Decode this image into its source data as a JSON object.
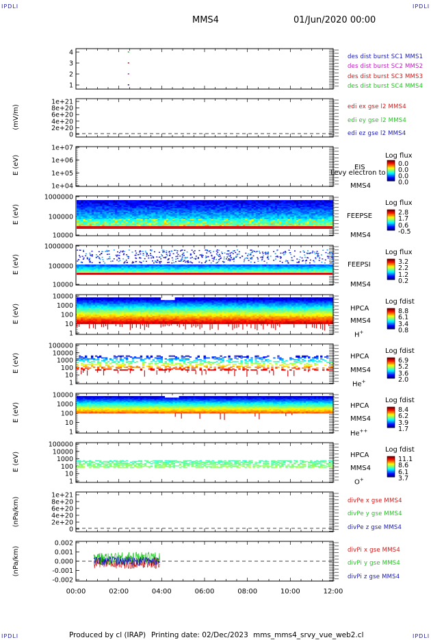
{
  "corner_label": "IPDLI",
  "header": {
    "spacecraft": "MMS4",
    "datetime": "01/Jun/2020 00:00"
  },
  "footer": {
    "producer": "Produced by cl (IRAP)",
    "printing": "Printing date: 02/Dec/2023",
    "file": "mms_mms4_srvy_vue_web2.cl"
  },
  "x_ticks": [
    "00:00",
    "02:00",
    "04:00",
    "06:00",
    "08:00",
    "10:00",
    "12:00"
  ],
  "panels": {
    "p1": {
      "ticks": [
        "4",
        "3",
        "2",
        "1"
      ],
      "legend": [
        {
          "text": "des dist burst SC1 MMS1",
          "color": "#1515b8"
        },
        {
          "text": "des dist burst SC2 MMS2",
          "color": "#c21ac2"
        },
        {
          "text": "des dist burst SC3 MMS3",
          "color": "#d11515"
        },
        {
          "text": "des dist burst SC4 MMS4",
          "color": "#1cc21c"
        }
      ]
    },
    "p2": {
      "ylabel": "(mV/m)",
      "ticks": [
        "1e+21",
        "8e+20",
        "6e+20",
        "4e+20",
        "2e+20",
        "0"
      ],
      "legend": [
        {
          "text": "edi ex gse l2 MMS4",
          "color": "#d11515"
        },
        {
          "text": "edi ey gse l2 MMS4",
          "color": "#1cc21c"
        },
        {
          "text": "edi ez gse l2 MMS4",
          "color": "#1515b8"
        }
      ]
    },
    "p3": {
      "ylabel": "E (eV)",
      "ticks": [
        "1e+07",
        "1e+06",
        "1e+05",
        "1e+04"
      ],
      "inst": "EIS",
      "overlay": "Levy electron to",
      "sc": "MMS4",
      "cb_title": "Log flux",
      "cb_ticks": [
        "0.0",
        "0.0",
        "0.0",
        "0.0"
      ]
    },
    "p4": {
      "ylabel": "E (eV)",
      "ticks": [
        "1000000",
        "100000",
        "10000"
      ],
      "inst": "FEEPSE",
      "sc": "MMS4",
      "cb_title": "Log flux",
      "cb_ticks": [
        "2.8",
        "1.7",
        "0.6",
        "-0.5"
      ]
    },
    "p5": {
      "ylabel": "E (eV)",
      "ticks": [
        "1000000",
        "100000",
        "10000"
      ],
      "inst": "FEEPSI",
      "sc": "MMS4",
      "cb_title": "Log flux",
      "cb_ticks": [
        "3.2",
        "2.2",
        "1.2",
        "0.2"
      ]
    },
    "p6": {
      "ylabel": "E (eV)",
      "ticks": [
        "10000",
        "1000",
        "100",
        "10",
        "1"
      ],
      "inst": "HPCA",
      "sc": "MMS4",
      "species": "H",
      "charge": "+",
      "cb_title": "Log fdist",
      "cb_ticks": [
        "8.8",
        "6.1",
        "3.4",
        "0.8"
      ]
    },
    "p7": {
      "ylabel": "E (eV)",
      "ticks": [
        "100000",
        "10000",
        "1000",
        "100",
        "10",
        "1"
      ],
      "inst": "HPCA",
      "sc": "MMS4",
      "species": "He",
      "charge": "+",
      "cb_title": "Log fdist",
      "cb_ticks": [
        "6.9",
        "5.2",
        "3.6",
        "2.0"
      ]
    },
    "p8": {
      "ylabel": "E (eV)",
      "ticks": [
        "10000",
        "1000",
        "100",
        "10",
        "1"
      ],
      "inst": "HPCA",
      "sc": "MMS4",
      "species": "He",
      "charge": "++",
      "cb_title": "Log fdist",
      "cb_ticks": [
        "8.4",
        "6.2",
        "3.9",
        "1.7"
      ]
    },
    "p9": {
      "ylabel": "E (eV)",
      "ticks": [
        "100000",
        "10000",
        "1000",
        "100",
        "10",
        "1"
      ],
      "inst": "HPCA",
      "sc": "MMS4",
      "species": "O",
      "charge": "+",
      "cb_title": "Log fdist",
      "cb_ticks": [
        "11.1",
        "8.6",
        "6.1",
        "3.7"
      ]
    },
    "p10": {
      "ylabel": "(nPa/km)",
      "ticks": [
        "1e+21",
        "8e+20",
        "6e+20",
        "4e+20",
        "2e+20",
        "0"
      ],
      "legend": [
        {
          "text": "divPe x gse MMS4",
          "color": "#d11515"
        },
        {
          "text": "divPe y gse MMS4",
          "color": "#1cc21c"
        },
        {
          "text": "divPe z gse MMS4",
          "color": "#1515b8"
        }
      ]
    },
    "p11": {
      "ylabel": "(nPa/km)",
      "ticks": [
        "0.002",
        "0.001",
        "0.000",
        "-0.001",
        "-0.002"
      ],
      "legend": [
        {
          "text": "divPi x gse MMS4",
          "color": "#d11515"
        },
        {
          "text": "divPi y gse MMS4",
          "color": "#1cc21c"
        },
        {
          "text": "divPi z gse MMS4",
          "color": "#1515b8"
        }
      ]
    }
  },
  "chart_data": {
    "type": "heatmap",
    "xlabel": "",
    "x_range": [
      "00:00",
      "12:00"
    ],
    "panels": [
      {
        "id": "burst",
        "type": "scatter",
        "y_ticks": [
          4,
          3,
          2,
          1
        ],
        "series": [
          {
            "name": "des dist burst SC1 MMS1",
            "x": [
              "02:25"
            ],
            "y": [
              1
            ]
          },
          {
            "name": "des dist burst SC2 MMS2",
            "x": [
              "02:25"
            ],
            "y": [
              2
            ]
          },
          {
            "name": "des dist burst SC3 MMS3",
            "x": [
              "02:25"
            ],
            "y": [
              3
            ]
          },
          {
            "name": "des dist burst SC4 MMS4",
            "x": [
              "02:25"
            ],
            "y": [
              4
            ]
          }
        ]
      },
      {
        "id": "edi",
        "type": "line",
        "ylabel": "(mV/m)",
        "y_range": [
          0,
          1e+21
        ],
        "note": "no data, zero line only"
      },
      {
        "id": "eis",
        "type": "heatmap",
        "ylabel": "E (eV)",
        "y_range": [
          10000.0,
          10000000.0
        ],
        "log": true,
        "data": "none"
      },
      {
        "id": "feepse",
        "type": "heatmap",
        "ylabel": "E (eV)",
        "y_range": [
          10000.0,
          1000000.0
        ],
        "log": true,
        "time_range": [
          "00:00",
          "12:00"
        ],
        "colorbar": [
          -0.5,
          2.8
        ]
      },
      {
        "id": "feepsi",
        "type": "heatmap",
        "ylabel": "E (eV)",
        "y_range": [
          10000.0,
          1000000.0
        ],
        "log": true,
        "time_range": [
          "00:00",
          "12:00"
        ],
        "colorbar": [
          0.2,
          3.2
        ]
      },
      {
        "id": "hpca_h",
        "type": "heatmap",
        "ylabel": "E (eV)",
        "y_range": [
          1,
          10000.0
        ],
        "log": true,
        "colorbar": [
          0.8,
          8.8
        ]
      },
      {
        "id": "hpca_he1",
        "type": "heatmap",
        "ylabel": "E (eV)",
        "y_range": [
          1,
          100000.0
        ],
        "log": true,
        "colorbar": [
          2.0,
          6.9
        ]
      },
      {
        "id": "hpca_he2",
        "type": "heatmap",
        "ylabel": "E (eV)",
        "y_range": [
          1,
          10000.0
        ],
        "log": true,
        "colorbar": [
          1.7,
          8.4
        ]
      },
      {
        "id": "hpca_o",
        "type": "heatmap",
        "ylabel": "E (eV)",
        "y_range": [
          1,
          100000.0
        ],
        "log": true,
        "colorbar": [
          3.7,
          11.1
        ]
      },
      {
        "id": "divpe",
        "type": "line",
        "ylabel": "(nPa/km)",
        "y_range": [
          0,
          1e+21
        ],
        "note": "no data, zero line only"
      },
      {
        "id": "divpi",
        "type": "line",
        "ylabel": "(nPa/km)",
        "y_range": [
          -0.002,
          0.002
        ],
        "time_range": [
          "00:50",
          "03:55"
        ],
        "series": [
          {
            "name": "divPi x gse MMS4"
          },
          {
            "name": "divPi y gse MMS4"
          },
          {
            "name": "divPi z gse MMS4"
          }
        ]
      }
    ]
  }
}
